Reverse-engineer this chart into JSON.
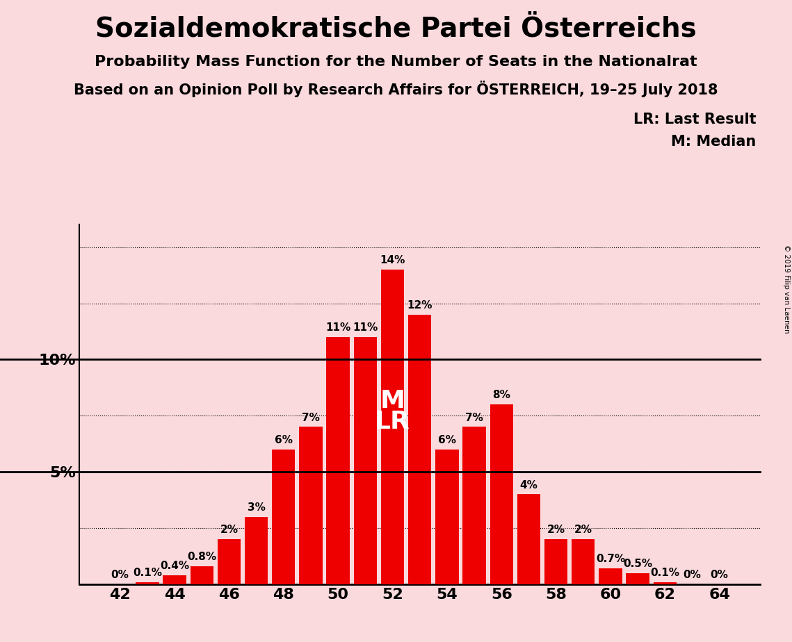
{
  "title": "Sozialdemokratische Partei Österreichs",
  "subtitle1": "Probability Mass Function for the Number of Seats in the Nationalrat",
  "subtitle2": "Based on an Opinion Poll by Research Affairs for ÖSTERREICH, 19–25 July 2018",
  "copyright": "© 2019 Filip van Laenen",
  "background_color": "#FADADD",
  "bar_color": "#EE0000",
  "seats": [
    42,
    43,
    44,
    45,
    46,
    47,
    48,
    49,
    50,
    51,
    52,
    53,
    54,
    55,
    56,
    57,
    58,
    59,
    60,
    61,
    62,
    63,
    64
  ],
  "probs": [
    0.0,
    0.1,
    0.4,
    0.8,
    2.0,
    3.0,
    6.0,
    7.0,
    11.0,
    11.0,
    14.0,
    12.0,
    6.0,
    7.0,
    8.0,
    4.0,
    2.0,
    2.0,
    0.7,
    0.5,
    0.1,
    0.0,
    0.0
  ],
  "labels": [
    "0%",
    "0.1%",
    "0.4%",
    "0.8%",
    "2%",
    "3%",
    "6%",
    "7%",
    "11%",
    "11%",
    "14%",
    "12%",
    "6%",
    "7%",
    "8%",
    "4%",
    "2%",
    "2%",
    "0.7%",
    "0.5%",
    "0.1%",
    "0%",
    "0%"
  ],
  "median_seat": 52,
  "last_result_seat": 52,
  "yticks": [
    0,
    2.5,
    5.0,
    7.5,
    10.0,
    12.5,
    15.0
  ],
  "ytick_labels": [
    "",
    "",
    "5%",
    "",
    "10%",
    "",
    ""
  ],
  "ylim": [
    0,
    16
  ],
  "xlim": [
    40.5,
    65.5
  ],
  "xlabel_seats": [
    42,
    44,
    46,
    48,
    50,
    52,
    54,
    56,
    58,
    60,
    62,
    64
  ],
  "legend_lr": "LR: Last Result",
  "legend_m": "M: Median",
  "title_fontsize": 28,
  "subtitle1_fontsize": 16,
  "subtitle2_fontsize": 15,
  "label_fontsize": 11,
  "tick_fontsize": 16,
  "legend_fontsize": 15,
  "ml_fontsize": 26
}
